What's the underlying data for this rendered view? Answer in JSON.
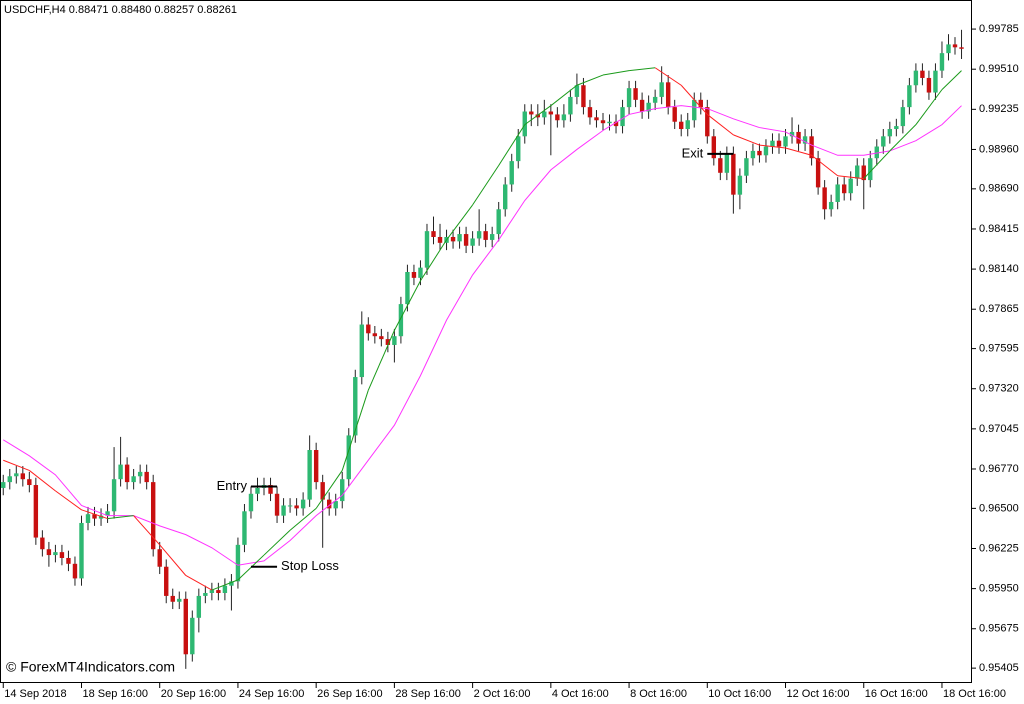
{
  "chart_data": {
    "type": "candlestick",
    "title": "USDCHF,H4  0.88471 0.88480 0.88257 0.88261",
    "credit": "© ForexMT4Indicators.com",
    "up_color": "#2eb872",
    "down_color": "#c81010",
    "open": [
      0.9664,
      0.9668,
      0.9672,
      0.9674,
      0.967,
      0.9666,
      0.963,
      0.9622,
      0.9618,
      0.962,
      0.9616,
      0.9612,
      0.9602,
      0.964,
      0.9646,
      0.9643,
      0.9645,
      0.9648,
      0.967,
      0.968,
      0.9668,
      0.9672,
      0.9675,
      0.9668,
      0.9622,
      0.961,
      0.959,
      0.9586,
      0.9588,
      0.955,
      0.9575,
      0.959,
      0.9592,
      0.9594,
      0.9592,
      0.9597,
      0.96,
      0.9625,
      0.9648,
      0.966,
      0.9664,
      0.9666,
      0.966,
      0.9645,
      0.9652,
      0.9652,
      0.965,
      0.9656,
      0.969,
      0.9668,
      0.9656,
      0.965,
      0.9655,
      0.967,
      0.97,
      0.974,
      0.9776,
      0.977,
      0.9768,
      0.9766,
      0.9762,
      0.9768,
      0.979,
      0.9812,
      0.9808,
      0.9815,
      0.984,
      0.9836,
      0.9832,
      0.9836,
      0.9833,
      0.9838,
      0.983,
      0.9835,
      0.984,
      0.9834,
      0.9838,
      0.9855,
      0.9872,
      0.9888,
      0.9905,
      0.9922,
      0.992,
      0.9918,
      0.9922,
      0.992,
      0.9916,
      0.992,
      0.9932,
      0.994,
      0.9925,
      0.9918,
      0.9916,
      0.9914,
      0.9915,
      0.9912,
      0.9925,
      0.9938,
      0.993,
      0.9922,
      0.9928,
      0.9932,
      0.9942,
      0.9925,
      0.9915,
      0.991,
      0.9916,
      0.993,
      0.9925,
      0.9905,
      0.989,
      0.988,
      0.9893,
      0.9865,
      0.9878,
      0.989,
      0.9895,
      0.9892,
      0.9898,
      0.9902,
      0.9898,
      0.9905,
      0.9908,
      0.99,
      0.9905,
      0.989,
      0.987,
      0.9855,
      0.986,
      0.9872,
      0.9866,
      0.9876,
      0.9885,
      0.9875,
      0.989,
      0.9898,
      0.9905,
      0.991,
      0.9912,
      0.9925,
      0.994,
      0.995,
      0.9945,
      0.9935,
      0.995,
      0.9962,
      0.9968,
      0.9966
    ],
    "high": [
      0.9673,
      0.9677,
      0.9679,
      0.9679,
      0.9675,
      0.9671,
      0.9635,
      0.9627,
      0.9625,
      0.9625,
      0.9621,
      0.9617,
      0.9645,
      0.9651,
      0.9651,
      0.965,
      0.9653,
      0.9692,
      0.9699,
      0.9685,
      0.9677,
      0.968,
      0.968,
      0.9673,
      0.9627,
      0.9615,
      0.9595,
      0.9593,
      0.9593,
      0.958,
      0.9595,
      0.9597,
      0.9599,
      0.9599,
      0.9602,
      0.9605,
      0.963,
      0.9653,
      0.9665,
      0.9671,
      0.9671,
      0.9671,
      0.9665,
      0.9657,
      0.9657,
      0.9657,
      0.9661,
      0.97,
      0.9695,
      0.9673,
      0.9661,
      0.966,
      0.9675,
      0.9705,
      0.9745,
      0.9785,
      0.9781,
      0.9775,
      0.9773,
      0.9771,
      0.9773,
      0.9795,
      0.9817,
      0.9817,
      0.982,
      0.9845,
      0.985,
      0.9845,
      0.9841,
      0.9841,
      0.9843,
      0.9843,
      0.984,
      0.9855,
      0.9845,
      0.9843,
      0.986,
      0.9877,
      0.9893,
      0.991,
      0.9927,
      0.9927,
      0.9927,
      0.993,
      0.9927,
      0.9925,
      0.9927,
      0.9937,
      0.9948,
      0.9945,
      0.993,
      0.9923,
      0.9921,
      0.992,
      0.992,
      0.993,
      0.9943,
      0.9943,
      0.9935,
      0.9933,
      0.9937,
      0.9953,
      0.9947,
      0.993,
      0.992,
      0.9921,
      0.9935,
      0.9935,
      0.993,
      0.991,
      0.9895,
      0.9898,
      0.9898,
      0.9883,
      0.9895,
      0.99,
      0.99,
      0.9903,
      0.9907,
      0.9907,
      0.991,
      0.9918,
      0.9913,
      0.991,
      0.991,
      0.9895,
      0.9875,
      0.9865,
      0.9877,
      0.9877,
      0.9881,
      0.989,
      0.989,
      0.9895,
      0.9903,
      0.991,
      0.9915,
      0.9917,
      0.993,
      0.9945,
      0.9955,
      0.9955,
      0.995,
      0.9955,
      0.997,
      0.9975,
      0.9973,
      0.9978
    ],
    "low": [
      0.9659,
      0.9663,
      0.9667,
      0.9665,
      0.9661,
      0.9625,
      0.9617,
      0.961,
      0.9613,
      0.9611,
      0.9607,
      0.9597,
      0.9597,
      0.9635,
      0.9638,
      0.9638,
      0.964,
      0.9643,
      0.9665,
      0.9663,
      0.9663,
      0.9667,
      0.9663,
      0.9617,
      0.9605,
      0.9585,
      0.9581,
      0.9581,
      0.954,
      0.9545,
      0.9565,
      0.9585,
      0.9587,
      0.9587,
      0.9587,
      0.958,
      0.9595,
      0.962,
      0.9643,
      0.9655,
      0.9659,
      0.9655,
      0.964,
      0.964,
      0.9647,
      0.9645,
      0.9645,
      0.9651,
      0.9663,
      0.9623,
      0.9645,
      0.9645,
      0.965,
      0.9665,
      0.9695,
      0.9735,
      0.9765,
      0.9763,
      0.9761,
      0.9757,
      0.975,
      0.9763,
      0.9785,
      0.9803,
      0.9803,
      0.981,
      0.9831,
      0.9827,
      0.9827,
      0.9828,
      0.9828,
      0.9825,
      0.9825,
      0.983,
      0.9829,
      0.9829,
      0.9833,
      0.985,
      0.9867,
      0.9883,
      0.99,
      0.9912,
      0.9912,
      0.9913,
      0.9892,
      0.9911,
      0.9911,
      0.9915,
      0.9927,
      0.992,
      0.9913,
      0.9911,
      0.9909,
      0.9909,
      0.9907,
      0.9907,
      0.992,
      0.9925,
      0.9917,
      0.9917,
      0.9923,
      0.9927,
      0.992,
      0.991,
      0.9905,
      0.9905,
      0.9911,
      0.992,
      0.99,
      0.9885,
      0.9875,
      0.9875,
      0.9852,
      0.9855,
      0.9873,
      0.9885,
      0.9887,
      0.9887,
      0.9893,
      0.9893,
      0.9893,
      0.99,
      0.9895,
      0.9895,
      0.9885,
      0.9865,
      0.9848,
      0.985,
      0.9855,
      0.9861,
      0.9861,
      0.9871,
      0.9855,
      0.987,
      0.9885,
      0.9893,
      0.99,
      0.9905,
      0.9907,
      0.992,
      0.9935,
      0.994,
      0.993,
      0.993,
      0.9945,
      0.9957,
      0.9961,
      0.9958
    ],
    "close": [
      0.9668,
      0.9672,
      0.9674,
      0.967,
      0.9666,
      0.963,
      0.9622,
      0.9618,
      0.962,
      0.9616,
      0.9612,
      0.9602,
      0.964,
      0.9646,
      0.9643,
      0.9645,
      0.9648,
      0.967,
      0.968,
      0.9668,
      0.9672,
      0.9675,
      0.9668,
      0.9622,
      0.961,
      0.959,
      0.9586,
      0.9588,
      0.955,
      0.9575,
      0.959,
      0.9592,
      0.9594,
      0.9592,
      0.9597,
      0.96,
      0.9625,
      0.9648,
      0.966,
      0.9664,
      0.9666,
      0.966,
      0.9645,
      0.9652,
      0.9652,
      0.965,
      0.9656,
      0.969,
      0.9668,
      0.9656,
      0.965,
      0.9655,
      0.967,
      0.97,
      0.974,
      0.9776,
      0.977,
      0.9768,
      0.9766,
      0.9762,
      0.9768,
      0.979,
      0.9812,
      0.9808,
      0.9815,
      0.984,
      0.9836,
      0.9832,
      0.9836,
      0.9833,
      0.9838,
      0.983,
      0.9835,
      0.984,
      0.9834,
      0.9838,
      0.9855,
      0.9872,
      0.9888,
      0.9905,
      0.9922,
      0.992,
      0.9918,
      0.9922,
      0.992,
      0.9916,
      0.992,
      0.9932,
      0.994,
      0.9925,
      0.9918,
      0.9916,
      0.9914,
      0.9915,
      0.9912,
      0.9925,
      0.9938,
      0.993,
      0.9922,
      0.9928,
      0.9932,
      0.9942,
      0.9925,
      0.9915,
      0.991,
      0.9916,
      0.993,
      0.9925,
      0.9905,
      0.989,
      0.988,
      0.9893,
      0.9865,
      0.9878,
      0.989,
      0.9895,
      0.9892,
      0.9898,
      0.9902,
      0.9898,
      0.9905,
      0.9908,
      0.99,
      0.9905,
      0.989,
      0.987,
      0.9855,
      0.986,
      0.9872,
      0.9866,
      0.9876,
      0.9885,
      0.9875,
      0.989,
      0.9898,
      0.9905,
      0.991,
      0.9912,
      0.9925,
      0.994,
      0.995,
      0.9945,
      0.9935,
      0.995,
      0.9962,
      0.9968,
      0.9966,
      0.9965
    ],
    "lines": [
      {
        "color": "#ff33ff",
        "x": [
          0,
          4,
          8,
          12,
          16,
          20,
          24,
          28,
          32,
          36,
          40,
          44,
          48,
          52,
          56,
          60,
          64,
          68,
          72,
          76,
          80,
          84,
          88,
          92,
          96,
          100,
          104,
          108,
          112,
          116,
          120,
          124,
          128,
          132,
          136,
          140,
          144,
          147
        ],
        "values": [
          0.9697,
          0.9686,
          0.9673,
          0.9652,
          0.9645,
          0.9645,
          0.9638,
          0.9632,
          0.9623,
          0.9611,
          0.9614,
          0.9628,
          0.9645,
          0.9659,
          0.9683,
          0.9707,
          0.9741,
          0.9779,
          0.981,
          0.9834,
          0.9861,
          0.9882,
          0.9896,
          0.9909,
          0.992,
          0.9924,
          0.9926,
          0.9924,
          0.9917,
          0.9911,
          0.9908,
          0.9899,
          0.9892,
          0.9892,
          0.9895,
          0.9902,
          0.9913,
          0.9926
        ]
      },
      {
        "up_color": "#1a9a1a",
        "down_color": "#ff2020",
        "x": [
          0,
          4,
          8,
          12,
          16,
          20,
          24,
          28,
          32,
          36,
          40,
          44,
          48,
          52,
          56,
          60,
          64,
          68,
          72,
          76,
          80,
          84,
          88,
          92,
          96,
          100,
          104,
          108,
          112,
          116,
          120,
          124,
          128,
          132,
          136,
          140,
          144,
          147
        ],
        "values": [
          0.9683,
          0.9676,
          0.9662,
          0.9649,
          0.9643,
          0.9645,
          0.9625,
          0.9604,
          0.9594,
          0.9601,
          0.9618,
          0.9635,
          0.965,
          0.9676,
          0.9731,
          0.9772,
          0.9806,
          0.9834,
          0.9858,
          0.9885,
          0.9913,
          0.9926,
          0.994,
          0.9947,
          0.995,
          0.9952,
          0.994,
          0.992,
          0.9906,
          0.9899,
          0.9897,
          0.9892,
          0.9878,
          0.9876,
          0.9895,
          0.9913,
          0.9937,
          0.995
        ]
      }
    ],
    "annotations": [
      {
        "text": "Entry",
        "value": 0.9665,
        "x": [
          38,
          42
        ],
        "side": "left"
      },
      {
        "text": "Stop Loss",
        "value": 0.961,
        "x": [
          38,
          42
        ],
        "side": "right"
      },
      {
        "text": "Exit",
        "value": 0.9893,
        "x": [
          108,
          112
        ],
        "side": "left"
      }
    ],
    "xlim": [
      -0.5,
      148.3
    ],
    "xticks": [
      {
        "value": 0,
        "label": "14 Sep 2018"
      },
      {
        "value": 12,
        "label": "18 Sep 16:00"
      },
      {
        "value": 24,
        "label": "20 Sep 16:00"
      },
      {
        "value": 36,
        "label": "24 Sep 16:00"
      },
      {
        "value": 48,
        "label": "26 Sep 16:00"
      },
      {
        "value": 60,
        "label": "28 Sep 16:00"
      },
      {
        "value": 72,
        "label": "2 Oct 16:00"
      },
      {
        "value": 84,
        "label": "4 Oct 16:00"
      },
      {
        "value": 96,
        "label": "8 Oct 16:00"
      },
      {
        "value": 108,
        "label": "10 Oct 16:00"
      },
      {
        "value": 120,
        "label": "12 Oct 16:00"
      },
      {
        "value": 132,
        "label": "16 Oct 16:00"
      },
      {
        "value": 144,
        "label": "18 Oct 16:00"
      }
    ],
    "ylim": [
      0.9531,
      0.9995
    ],
    "yticks": [
      0.99785,
      {
        "value": 0.9951,
        "label": "0.99510"
      },
      0.99235,
      {
        "value": 0.9896,
        "label": "0.98960"
      },
      {
        "value": 0.9869,
        "label": "0.98690"
      },
      0.98415,
      {
        "value": 0.9814,
        "label": "0.98140"
      },
      0.97865,
      0.97595,
      {
        "value": 0.9732,
        "label": "0.97320"
      },
      0.97045,
      {
        "value": 0.9677,
        "label": "0.96770"
      },
      {
        "value": 0.965,
        "label": "0.96500"
      },
      0.96225,
      {
        "value": 0.9595,
        "label": "0.95950"
      },
      0.95675,
      0.95405
    ]
  }
}
